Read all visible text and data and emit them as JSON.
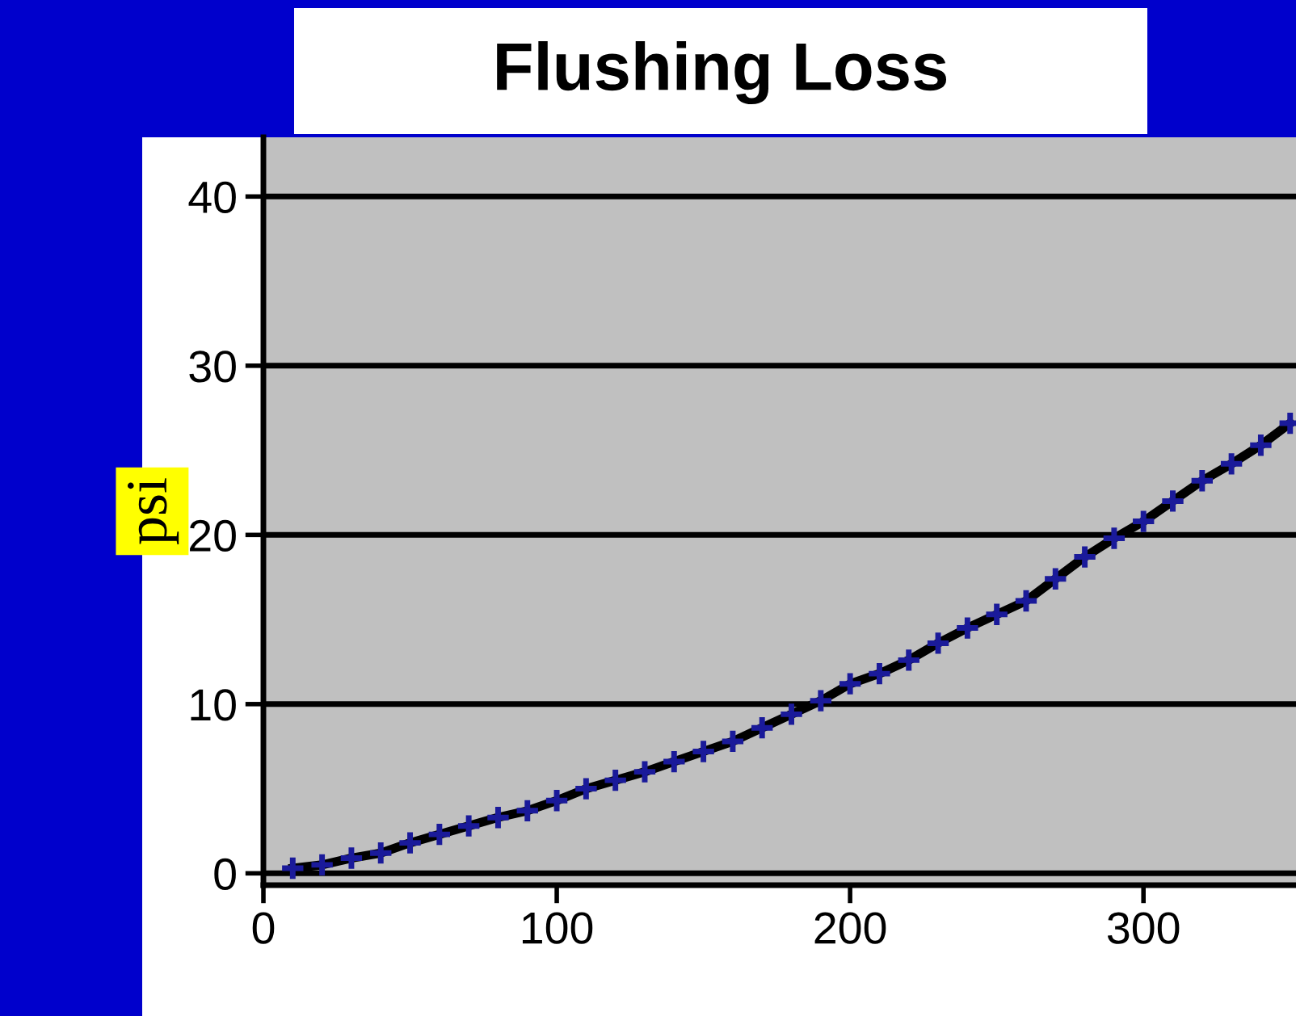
{
  "chart_data": {
    "type": "scatter",
    "title": "Flushing Loss",
    "ylabel": "psi",
    "series": [
      {
        "type": "line",
        "color": "#000000",
        "marker": "none",
        "x": [
          10,
          20,
          30,
          40,
          50,
          60,
          70,
          80,
          90,
          100,
          110,
          120,
          130,
          140,
          150,
          160,
          170,
          180,
          190,
          200,
          210,
          220,
          230,
          240,
          250,
          260,
          270,
          280,
          290,
          300,
          310,
          320,
          330,
          340,
          350
        ],
        "values": [
          0.3,
          0.5,
          0.9,
          1.2,
          1.8,
          2.3,
          2.8,
          3.3,
          3.7,
          4.3,
          5.0,
          5.5,
          6.0,
          6.6,
          7.2,
          7.8,
          8.6,
          9.4,
          10.2,
          11.2,
          11.8,
          12.6,
          13.6,
          14.5,
          15.3,
          16.1,
          17.4,
          18.7,
          19.8,
          20.8,
          22.0,
          23.2,
          24.2,
          25.3,
          26.6
        ]
      },
      {
        "color": "#1a1a9a",
        "marker": "cross",
        "x": [
          10,
          20,
          30,
          40,
          50,
          60,
          70,
          80,
          90,
          100,
          110,
          120,
          130,
          140,
          150,
          160,
          170,
          180,
          190,
          200,
          210,
          220,
          230,
          240,
          250,
          260,
          270,
          280,
          290,
          300,
          310,
          320,
          330,
          340,
          350
        ],
        "values": [
          0.3,
          0.5,
          0.9,
          1.2,
          1.8,
          2.3,
          2.8,
          3.3,
          3.7,
          4.3,
          5.0,
          5.5,
          6.0,
          6.6,
          7.2,
          7.8,
          8.6,
          9.4,
          10.2,
          11.2,
          11.8,
          12.6,
          13.6,
          14.5,
          15.3,
          16.1,
          17.4,
          18.7,
          19.8,
          20.8,
          22.0,
          23.2,
          24.2,
          25.3,
          26.6
        ]
      }
    ],
    "xlim": [
      0,
      352
    ],
    "xticks": [
      0,
      100,
      200,
      300
    ],
    "ylim": [
      -0.7,
      43.5
    ],
    "yticks": [
      0,
      10,
      20,
      30,
      40
    ],
    "grid": "y",
    "legend": false
  }
}
